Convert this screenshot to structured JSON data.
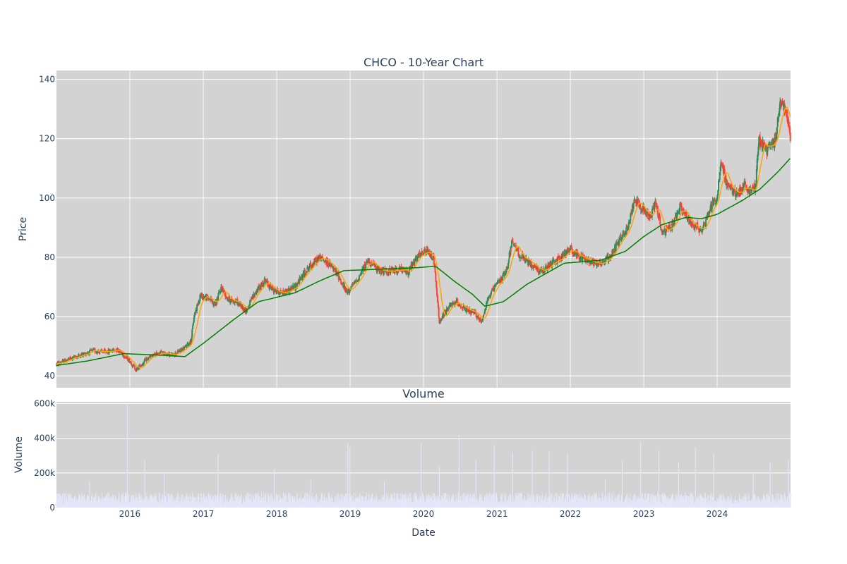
{
  "chart_data": [
    {
      "type": "candlestick",
      "title": "CHCO - 10-Year Chart",
      "ylabel": "Price",
      "ylim": [
        36,
        143
      ],
      "yticks": [
        40,
        60,
        80,
        100,
        120,
        140
      ],
      "xlim": [
        "2015-01-01",
        "2024-12-31"
      ],
      "xticks": [
        "2016",
        "2017",
        "2018",
        "2019",
        "2020",
        "2021",
        "2022",
        "2023",
        "2024"
      ],
      "grid": true,
      "plot_bg": "#d3d3d3",
      "colors": {
        "up": "#2e8b57",
        "down": "#ff4136",
        "ma_short": "#ffa500",
        "ma_long": "#008000"
      },
      "price_path": [
        [
          "2015-01-01",
          44
        ],
        [
          "2015-03-01",
          45.5
        ],
        [
          "2015-05-01",
          47
        ],
        [
          "2015-07-01",
          48.5
        ],
        [
          "2015-09-01",
          48
        ],
        [
          "2015-11-01",
          49
        ],
        [
          "2016-01-01",
          45
        ],
        [
          "2016-02-01",
          42
        ],
        [
          "2016-04-01",
          46
        ],
        [
          "2016-06-01",
          48
        ],
        [
          "2016-08-01",
          47
        ],
        [
          "2016-10-01",
          49.5
        ],
        [
          "2016-11-01",
          52
        ],
        [
          "2016-11-15",
          60
        ],
        [
          "2016-12-15",
          67
        ],
        [
          "2017-02-01",
          66
        ],
        [
          "2017-03-01",
          64
        ],
        [
          "2017-04-01",
          70
        ],
        [
          "2017-05-01",
          66
        ],
        [
          "2017-06-15",
          65
        ],
        [
          "2017-08-01",
          62
        ],
        [
          "2017-09-15",
          68
        ],
        [
          "2017-11-01",
          72
        ],
        [
          "2017-12-15",
          69
        ],
        [
          "2018-02-01",
          68
        ],
        [
          "2018-04-01",
          70
        ],
        [
          "2018-06-01",
          76
        ],
        [
          "2018-08-01",
          80
        ],
        [
          "2018-09-15",
          78
        ],
        [
          "2018-11-01",
          74
        ],
        [
          "2018-12-15",
          68
        ],
        [
          "2019-02-01",
          72
        ],
        [
          "2019-04-01",
          79
        ],
        [
          "2019-05-15",
          76
        ],
        [
          "2019-07-01",
          75
        ],
        [
          "2019-09-01",
          76
        ],
        [
          "2019-10-15",
          75
        ],
        [
          "2019-12-01",
          80
        ],
        [
          "2020-01-15",
          82
        ],
        [
          "2020-02-20",
          80
        ],
        [
          "2020-03-20",
          58
        ],
        [
          "2020-05-01",
          63
        ],
        [
          "2020-06-15",
          65
        ],
        [
          "2020-08-01",
          62
        ],
        [
          "2020-09-15",
          61
        ],
        [
          "2020-10-15",
          58
        ],
        [
          "2020-11-15",
          66
        ],
        [
          "2021-01-01",
          71
        ],
        [
          "2021-02-15",
          75
        ],
        [
          "2021-03-15",
          85
        ],
        [
          "2021-05-01",
          80
        ],
        [
          "2021-07-01",
          77
        ],
        [
          "2021-08-15",
          75
        ],
        [
          "2021-10-01",
          78
        ],
        [
          "2021-11-15",
          80
        ],
        [
          "2022-01-01",
          83
        ],
        [
          "2022-02-15",
          80
        ],
        [
          "2022-04-01",
          79
        ],
        [
          "2022-06-01",
          78
        ],
        [
          "2022-07-15",
          80
        ],
        [
          "2022-09-01",
          86
        ],
        [
          "2022-10-15",
          90
        ],
        [
          "2022-11-15",
          100
        ],
        [
          "2023-01-01",
          96
        ],
        [
          "2023-02-01",
          93
        ],
        [
          "2023-03-01",
          99
        ],
        [
          "2023-04-01",
          88
        ],
        [
          "2023-05-15",
          90
        ],
        [
          "2023-07-01",
          97
        ],
        [
          "2023-08-15",
          92
        ],
        [
          "2023-10-15",
          89
        ],
        [
          "2023-12-01",
          97
        ],
        [
          "2024-01-01",
          100
        ],
        [
          "2024-01-20",
          113
        ],
        [
          "2024-02-15",
          105
        ],
        [
          "2024-04-01",
          101
        ],
        [
          "2024-05-15",
          104
        ],
        [
          "2024-06-15",
          102
        ],
        [
          "2024-07-10",
          104
        ],
        [
          "2024-07-25",
          120
        ],
        [
          "2024-09-01",
          116
        ],
        [
          "2024-10-15",
          119
        ],
        [
          "2024-11-10",
          133
        ],
        [
          "2024-12-10",
          130
        ],
        [
          "2024-12-31",
          119
        ]
      ],
      "ma_long_path": [
        [
          "2015-01-01",
          43.5
        ],
        [
          "2015-06-01",
          45
        ],
        [
          "2015-12-01",
          47.5
        ],
        [
          "2016-06-01",
          47
        ],
        [
          "2016-10-01",
          46.5
        ],
        [
          "2017-01-01",
          51
        ],
        [
          "2017-06-01",
          59
        ],
        [
          "2017-10-01",
          65
        ],
        [
          "2018-04-01",
          68
        ],
        [
          "2018-08-01",
          72
        ],
        [
          "2018-12-01",
          75.5
        ],
        [
          "2019-06-01",
          76
        ],
        [
          "2019-12-01",
          76.5
        ],
        [
          "2020-03-01",
          77
        ],
        [
          "2020-06-01",
          72
        ],
        [
          "2020-09-01",
          67.5
        ],
        [
          "2020-11-01",
          63.5
        ],
        [
          "2021-02-01",
          65
        ],
        [
          "2021-06-01",
          71
        ],
        [
          "2021-12-01",
          78
        ],
        [
          "2022-06-01",
          79
        ],
        [
          "2022-10-01",
          82
        ],
        [
          "2023-01-01",
          87
        ],
        [
          "2023-04-01",
          91
        ],
        [
          "2023-08-01",
          93.5
        ],
        [
          "2023-10-15",
          93
        ],
        [
          "2024-01-01",
          94.5
        ],
        [
          "2024-05-01",
          99
        ],
        [
          "2024-08-01",
          103
        ],
        [
          "2024-11-01",
          109
        ],
        [
          "2024-12-31",
          113.5
        ]
      ]
    },
    {
      "type": "bar",
      "title": "Volume",
      "xlabel": "Date",
      "ylabel": "Volume",
      "ylim": [
        0,
        610000
      ],
      "yticks": [
        0,
        200000,
        400000,
        600000
      ],
      "ytick_labels": [
        "0",
        "200k",
        "400k",
        "600k"
      ],
      "bar_color": "#e6e6fa",
      "baseline_volume": 60000,
      "spikes": [
        [
          "2015-06-15",
          150000
        ],
        [
          "2015-12-20",
          600000
        ],
        [
          "2016-03-15",
          270000
        ],
        [
          "2016-06-20",
          200000
        ],
        [
          "2017-03-15",
          310000
        ],
        [
          "2017-12-20",
          220000
        ],
        [
          "2018-06-20",
          160000
        ],
        [
          "2018-12-20",
          370000
        ],
        [
          "2018-12-31",
          350000
        ],
        [
          "2019-06-20",
          150000
        ],
        [
          "2019-12-20",
          370000
        ],
        [
          "2020-03-20",
          240000
        ],
        [
          "2020-06-26",
          420000
        ],
        [
          "2020-09-18",
          270000
        ],
        [
          "2020-12-18",
          360000
        ],
        [
          "2021-03-19",
          320000
        ],
        [
          "2021-06-25",
          330000
        ],
        [
          "2021-09-17",
          320000
        ],
        [
          "2021-12-17",
          310000
        ],
        [
          "2022-06-24",
          160000
        ],
        [
          "2022-09-16",
          270000
        ],
        [
          "2022-12-16",
          380000
        ],
        [
          "2023-03-17",
          330000
        ],
        [
          "2023-06-23",
          260000
        ],
        [
          "2023-09-15",
          350000
        ],
        [
          "2023-12-15",
          310000
        ],
        [
          "2024-06-28",
          200000
        ],
        [
          "2024-09-20",
          260000
        ],
        [
          "2024-12-20",
          270000
        ]
      ]
    }
  ]
}
